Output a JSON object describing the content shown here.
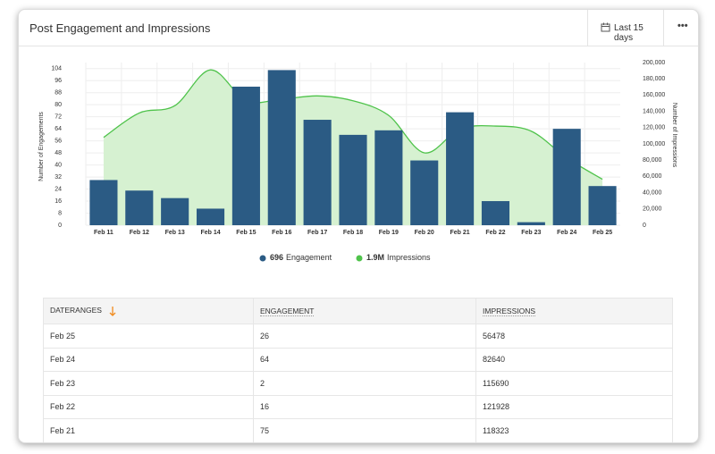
{
  "header": {
    "title": "Post Engagement and Impressions",
    "range_button": "Last 15 days"
  },
  "chart_data": {
    "type": "bar-area",
    "categories": [
      "Feb 11",
      "Feb 12",
      "Feb 13",
      "Feb 14",
      "Feb 15",
      "Feb 16",
      "Feb 17",
      "Feb 18",
      "Feb 19",
      "Feb 20",
      "Feb 21",
      "Feb 22",
      "Feb 23",
      "Feb 24",
      "Feb 25"
    ],
    "series": [
      {
        "name": "Engagement",
        "type": "bar",
        "color": "#2b5b84",
        "total": 696,
        "values": [
          30,
          23,
          18,
          11,
          92,
          103,
          70,
          60,
          63,
          43,
          75,
          16,
          2,
          64,
          26
        ]
      },
      {
        "name": "Impressions",
        "type": "area",
        "axis": "y2",
        "color": "#4fc34b",
        "fill": "#d6f1d1",
        "total": 1900000,
        "total_label": "1.9M",
        "values": [
          108000,
          138000,
          147000,
          191000,
          153000,
          155000,
          159000,
          153000,
          135000,
          89000,
          118323,
          121928,
          115690,
          82640,
          56478
        ]
      }
    ],
    "ylabel": "Number of Engagements",
    "y2label": "Number of Impressions",
    "ylim": [
      0,
      108
    ],
    "yticks": [
      0,
      8,
      16,
      24,
      32,
      40,
      48,
      56,
      64,
      72,
      80,
      88,
      96,
      104
    ],
    "y2lim": [
      0,
      200000
    ],
    "y2ticks": [
      0,
      {
        "value": 20000,
        "label": "20,000"
      },
      {
        "value": 40000,
        "label": "40,000"
      },
      {
        "value": 60000,
        "label": "60,000"
      },
      {
        "value": 80000,
        "label": "80,000"
      },
      {
        "value": 100000,
        "label": "100,000"
      },
      {
        "value": 120000,
        "label": "120,000"
      },
      {
        "value": 140000,
        "label": "140,000"
      },
      {
        "value": 160000,
        "label": "160,000"
      },
      {
        "value": 180000,
        "label": "180,000"
      },
      {
        "value": 200000,
        "label": "200,000"
      }
    ],
    "grid": true
  },
  "table": {
    "columns": [
      "DATERANGES",
      "ENGAGEMENT",
      "IMPRESSIONS"
    ],
    "rows": [
      [
        "Feb 25",
        "26",
        "56478"
      ],
      [
        "Feb 24",
        "64",
        "82640"
      ],
      [
        "Feb 23",
        "2",
        "115690"
      ],
      [
        "Feb 22",
        "16",
        "121928"
      ],
      [
        "Feb 21",
        "75",
        "118323"
      ]
    ]
  }
}
